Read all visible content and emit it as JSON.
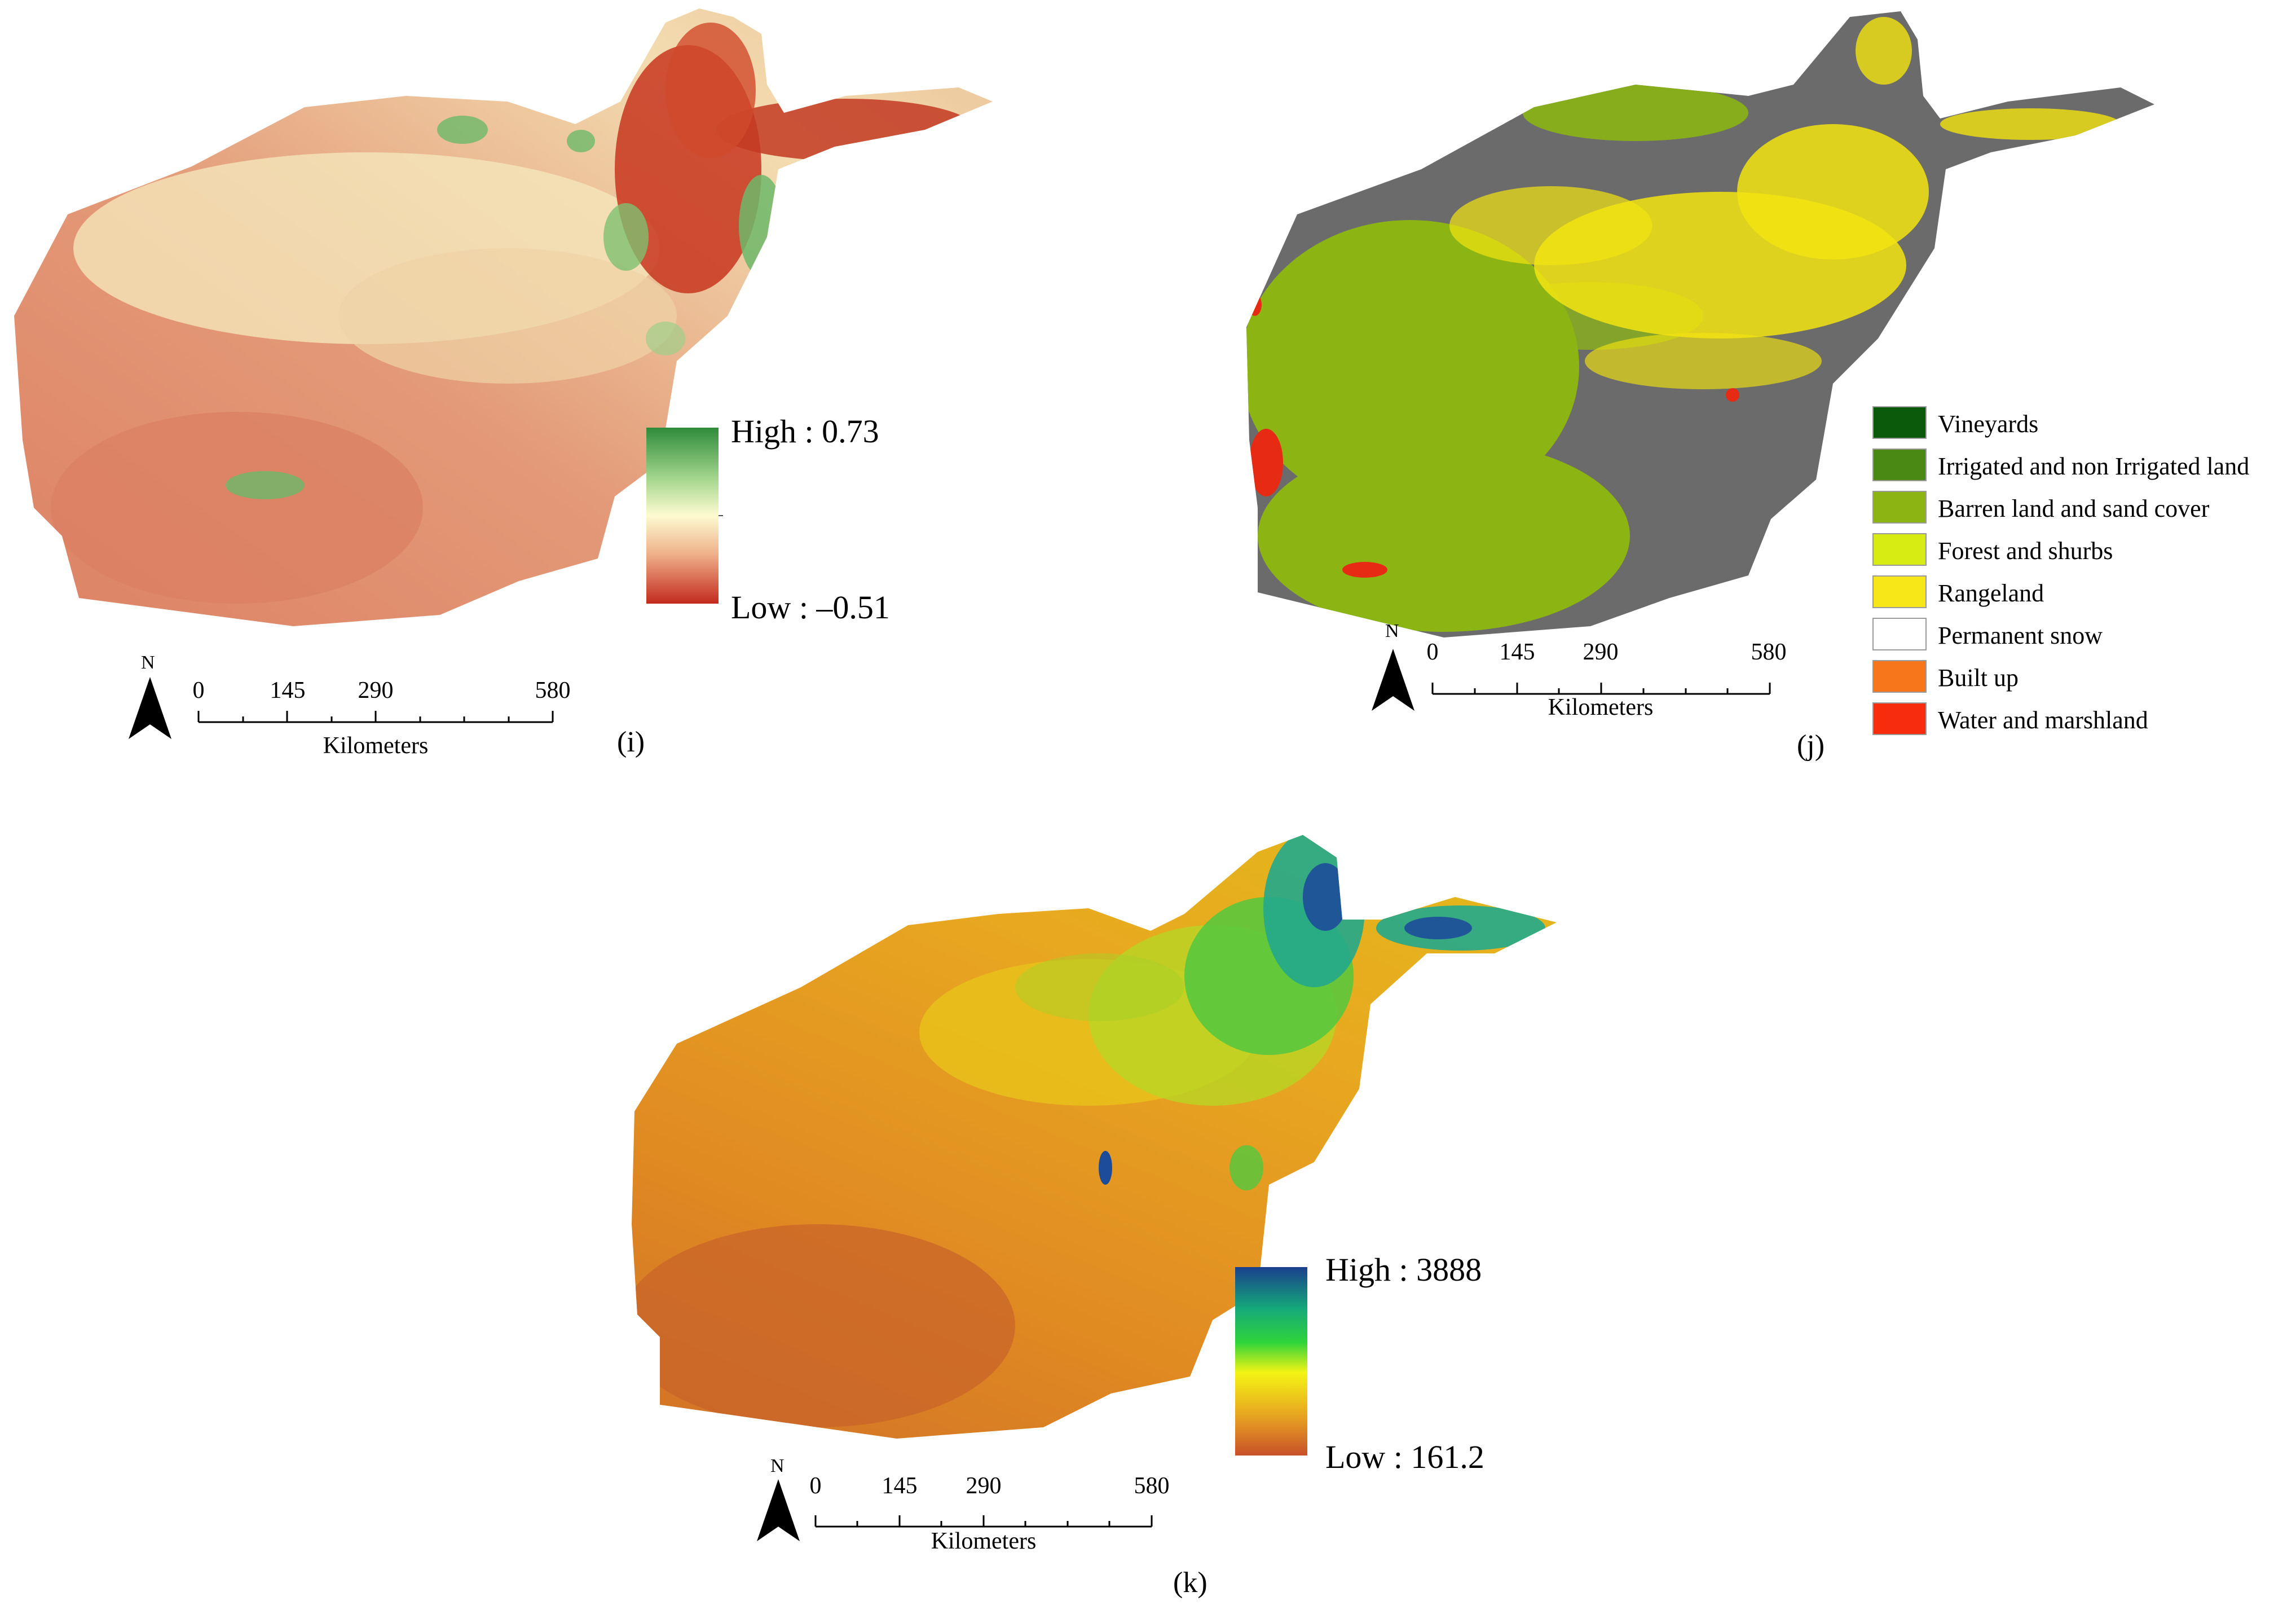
{
  "panels": {
    "i": {
      "caption": "(i)",
      "legend": {
        "high_label": "High : 0.73",
        "low_label": "Low : –0.51",
        "ramp_colors": [
          "#2e8b3a",
          "#a8d890",
          "#fdfbd0",
          "#efb08a",
          "#c22a1c"
        ]
      },
      "map_colors": {
        "base": "#e0866a",
        "light": "#f3dcb0",
        "pale": "#f7ebc4",
        "green": "#6db96a",
        "red": "#c7361f"
      }
    },
    "j": {
      "caption": "(j)",
      "categories": [
        {
          "label": "Vineyards",
          "color": "#0b5a0b"
        },
        {
          "label": "Irrigated and non Irrigated land",
          "color": "#4a8a14"
        },
        {
          "label": "Barren land  and sand cover",
          "color": "#8cb514"
        },
        {
          "label": "Forest and shurbs",
          "color": "#d6ec12"
        },
        {
          "label": "Rangeland",
          "color": "#f7e618"
        },
        {
          "label": "Permanent snow",
          "color": "#ffffff"
        },
        {
          "label": "Built up",
          "color": "#f7761a"
        },
        {
          "label": "Water and marshland",
          "color": "#f72c0c"
        }
      ],
      "map_colors": {
        "grey": "#6b6b6b",
        "barren": "#8cb514",
        "range": "#f2e410",
        "water": "#e62a14"
      }
    },
    "k": {
      "caption": "(k)",
      "legend": {
        "high_label": "High : 3888",
        "low_label": "Low : 161.2",
        "ramp_colors": [
          "#1a3f8c",
          "#15a97a",
          "#2fd43a",
          "#f4f414",
          "#e8a820",
          "#c8502a"
        ]
      },
      "map_colors": {
        "base": "#e4921c",
        "low": "#c8632a",
        "mid": "#e8c61a",
        "green": "#52c83e",
        "blue": "#1d4c9a",
        "teal": "#22a88c"
      }
    }
  },
  "scale_bar": {
    "ticks": [
      "0",
      "145",
      "290",
      "580"
    ],
    "unit": "Kilometers",
    "north": "N"
  }
}
